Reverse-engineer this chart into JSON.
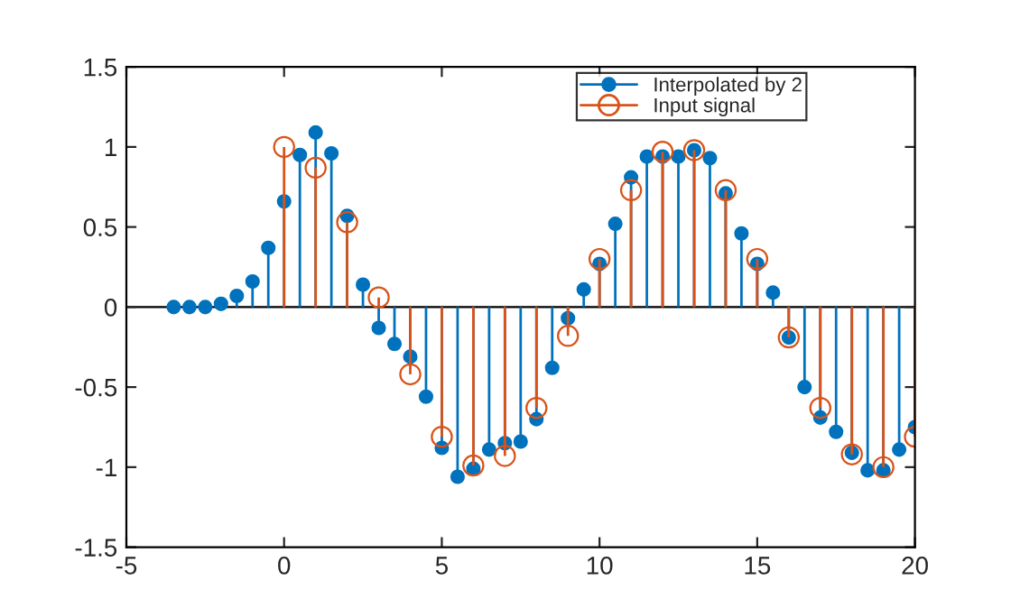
{
  "chart_data": {
    "type": "lollipop",
    "legend": "top right",
    "marker": "circle",
    "grid": false,
    "ref_lines": [
      {
        "axis": "y",
        "value": 0,
        "color": "#000000"
      }
    ],
    "xlim": [
      -5,
      20
    ],
    "xticks": [
      -5,
      0,
      5,
      10,
      15,
      20
    ],
    "ylim": [
      -1.5,
      1.5
    ],
    "yticks": [
      -1.5,
      -1,
      -0.5,
      0,
      0.5,
      1,
      1.5
    ],
    "series": [
      {
        "name": "Interpolated by 2",
        "color": "#0072bd",
        "x": [
          -3.5,
          -3,
          -2.5,
          -2,
          -1.5,
          -1,
          -0.5,
          0,
          0.5,
          1,
          1.5,
          2,
          2.5,
          3,
          3.5,
          4,
          4.5,
          5,
          5.5,
          6,
          6.5,
          7,
          7.5,
          8,
          8.5,
          9,
          9.5,
          10,
          10.5,
          11,
          11.5,
          12,
          12.5,
          13,
          13.5,
          14,
          14.5,
          15,
          15.5,
          16,
          16.5,
          17,
          17.5,
          18,
          18.5,
          19,
          19.5,
          20
        ],
        "values": [
          0,
          0,
          0,
          0.02,
          0.07,
          0.16,
          0.37,
          0.66,
          0.95,
          1.09,
          0.96,
          0.57,
          0.14,
          -0.13,
          -0.23,
          -0.31,
          -0.56,
          -0.88,
          -1.06,
          -1.01,
          -0.89,
          -0.85,
          -0.84,
          -0.7,
          -0.38,
          -0.07,
          0.11,
          0.27,
          0.52,
          0.81,
          0.94,
          0.94,
          0.94,
          0.98,
          0.93,
          0.71,
          0.46,
          0.27,
          0.09,
          -0.19,
          -0.5,
          -0.69,
          -0.78,
          -0.91,
          -1.02,
          -1.02,
          -0.89,
          -0.75
        ]
      },
      {
        "name": "Input signal",
        "color": "#d95319",
        "x": [
          0,
          1,
          2,
          3,
          4,
          5,
          6,
          7,
          8,
          9,
          10,
          11,
          12,
          13,
          14,
          15,
          16,
          17,
          18,
          19,
          20
        ],
        "values": [
          1.0,
          0.87,
          0.53,
          0.06,
          -0.42,
          -0.81,
          -0.99,
          -0.93,
          -0.63,
          -0.18,
          0.3,
          0.73,
          0.97,
          0.98,
          0.73,
          0.3,
          -0.19,
          -0.63,
          -0.92,
          -1.0,
          -0.81
        ]
      }
    ]
  }
}
